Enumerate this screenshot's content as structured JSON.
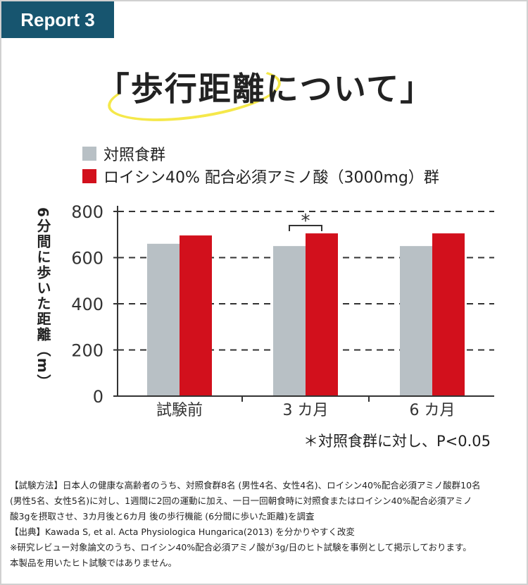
{
  "tag": "Report 3",
  "title": "「歩行距離について」",
  "chart_data": {
    "type": "bar",
    "ylabel": "6分間に歩いた距離（m）",
    "categories": [
      "試験前",
      "3 カ月",
      "6 カ月"
    ],
    "series": [
      {
        "name": "対照食群",
        "color": "#b8c0c5",
        "values": [
          660,
          650,
          650
        ]
      },
      {
        "name": "ロイシン40% 配合必須アミノ酸（3000mg）群",
        "color": "#d2101c",
        "values": [
          696,
          705,
          705
        ]
      }
    ],
    "ylim": [
      0,
      800
    ],
    "yticks": [
      0,
      200,
      400,
      600,
      800
    ],
    "grid": true,
    "legend": "top-left",
    "significance": {
      "category": 1,
      "mark": "*"
    },
    "annotation": "＊対照食群に対し、P<0.05"
  },
  "footnotes": [
    "【試験方法】日本人の健康な高齢者のうち、対照食群8名 (男性4名、女性4名)、ロイシン40%配合必須アミノ酸群10名",
    " (男性5名、女性5名)に対し、1週間に2回の運動に加え、一日一回朝食時に対照食またはロイシン40%配合必須アミノ",
    "酸3gを摂取させ、3カ月後と6カ月 後の歩行機能 (6分間に歩いた距離)を調査",
    "【出典】Kawada S, et al. Acta Physiologica Hungarica(2013) を分かりやすく改変",
    "※研究レビュー対象論文のうち、ロイシン40%配合必須アミノ酸が3g/日のヒト試験を事例として掲示しております。",
    "本製品を用いたヒト試験ではありません。"
  ]
}
